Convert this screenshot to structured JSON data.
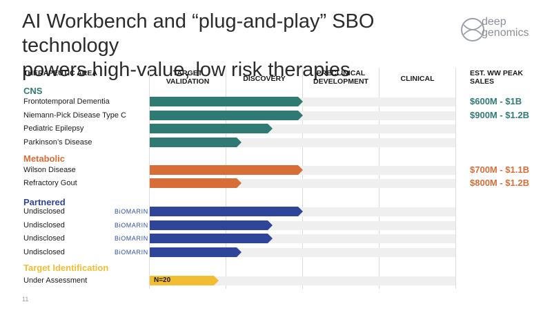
{
  "title_line1": "AI Workbench and “plug-and-play” SBO technology",
  "title_line2": "powers high-value, low risk therapies",
  "logo": {
    "line1": "deep",
    "line2": "genomics"
  },
  "columns": {
    "area": "THERAPEUTIC AREA",
    "target_validation": [
      "TARGET",
      "VALIDATION"
    ],
    "discovery": "DISCOVERY",
    "preclinical": [
      "PRECLINICAL",
      "DEVELOPMENT"
    ],
    "clinical": "CLINICAL",
    "sales": [
      "EST. WW PEAK",
      "SALES"
    ]
  },
  "colors": {
    "cns": "#2f7b73",
    "metabolic": "#d76d37",
    "partnered": "#2f4599",
    "target_identification": "#f2bd32"
  },
  "categories": {
    "cns": "CNS",
    "metabolic": "Metabolic",
    "partnered": "Partnered",
    "target_identification": "Target Identification"
  },
  "rows": [
    {
      "label": "Frontotemporal Dementia",
      "category": "cns",
      "progress_stage": 2.0,
      "sales": "$600M - $1B"
    },
    {
      "label": "Niemann-Pick Disease Type C",
      "category": "cns",
      "progress_stage": 2.0,
      "sales": "$900M - $1.2B"
    },
    {
      "label": "Pediatric Epilepsy",
      "category": "cns",
      "progress_stage": 1.6
    },
    {
      "label": "Parkinson’s Disease",
      "category": "cns",
      "progress_stage": 1.2
    },
    {
      "label": "Wilson Disease",
      "category": "metabolic",
      "progress_stage": 2.0,
      "sales": "$700M - $1.1B"
    },
    {
      "label": "Refractory Gout",
      "category": "metabolic",
      "progress_stage": 1.2,
      "sales": "$800M - $1.2B"
    },
    {
      "label": "Undisclosed",
      "category": "partnered",
      "progress_stage": 2.0,
      "partner": "BiOMARIN"
    },
    {
      "label": "Undisclosed",
      "category": "partnered",
      "progress_stage": 1.6,
      "partner": "BiOMARIN"
    },
    {
      "label": "Undisclosed",
      "category": "partnered",
      "progress_stage": 1.6,
      "partner": "BiOMARIN"
    },
    {
      "label": "Undisclosed",
      "category": "partnered",
      "progress_stage": 1.2,
      "partner": "BiOMARIN"
    },
    {
      "label": "Under Assessment",
      "category": "target_identification",
      "progress_stage": 0.9,
      "bar_text": "N=20"
    }
  ],
  "page_number": "11"
}
